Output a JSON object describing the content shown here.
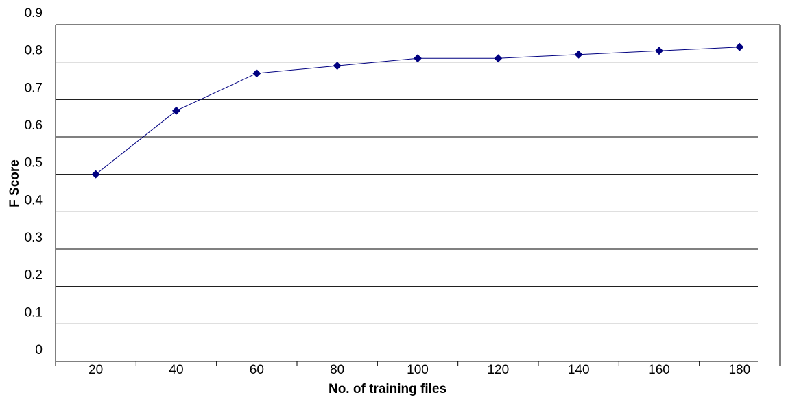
{
  "chart_data": {
    "type": "line",
    "x_label": "No. of training files",
    "y_label": "F Score",
    "categories": [
      "20",
      "40",
      "60",
      "80",
      "100",
      "120",
      "140",
      "160",
      "180"
    ],
    "series": [
      {
        "name": "F Score",
        "color": "#000080",
        "values": [
          0.5,
          0.67,
          0.77,
          0.79,
          0.81,
          0.81,
          0.82,
          0.83,
          0.84
        ]
      }
    ],
    "ylim": [
      0,
      0.9
    ],
    "yticks": [
      0,
      0.1,
      0.2,
      0.3,
      0.4,
      0.5,
      0.6,
      0.7,
      0.8,
      0.9
    ],
    "grid": true
  }
}
